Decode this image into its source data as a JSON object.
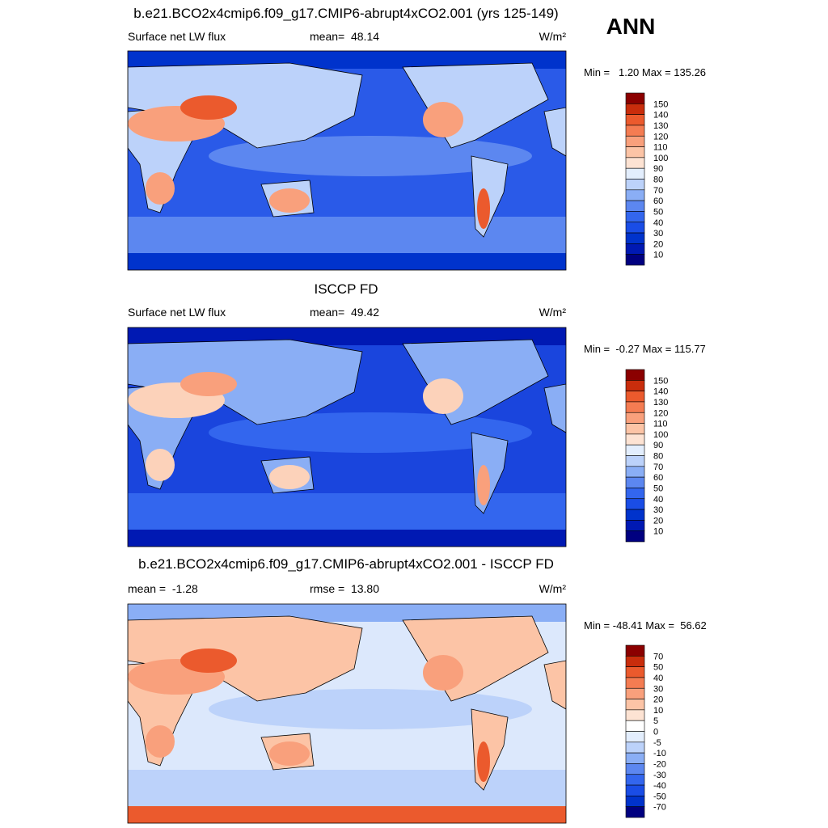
{
  "figure_label": "ANN",
  "panels": [
    {
      "title": "b.e21.BCO2x4cmip6.f09_g17.CMIP6-abrupt4xCO2.001 (yrs 125-149)",
      "left": "Surface net LW flux",
      "center": "mean=  48.14",
      "right": "W/m²",
      "range": "Min =   1.20 Max = 135.26",
      "colorbar": {
        "levels": [
          150,
          140,
          130,
          120,
          110,
          100,
          90,
          80,
          70,
          60,
          50,
          40,
          30,
          20,
          10
        ],
        "colors": [
          "#8b0000",
          "#c92d0c",
          "#eb5a2d",
          "#f47c52",
          "#f9a07c",
          "#fcc4a6",
          "#fde3d3",
          "#e3eefd",
          "#bcd2fa",
          "#8aaef5",
          "#5c87f0",
          "#3366ee",
          "#1a4de6",
          "#0033cc",
          "#0019b3",
          "#000080"
        ]
      }
    },
    {
      "title": "ISCCP FD",
      "left": "Surface net LW flux",
      "center": "mean=  49.42",
      "right": "W/m²",
      "range": "Min =  -0.27 Max = 115.77",
      "colorbar": {
        "levels": [
          150,
          140,
          130,
          120,
          110,
          100,
          90,
          80,
          70,
          60,
          50,
          40,
          30,
          20,
          10
        ],
        "colors": [
          "#8b0000",
          "#c92d0c",
          "#eb5a2d",
          "#f47c52",
          "#f9a07c",
          "#fcc4a6",
          "#fde3d3",
          "#e3eefd",
          "#bcd2fa",
          "#8aaef5",
          "#5c87f0",
          "#3366ee",
          "#1a4de6",
          "#0033cc",
          "#0019b3",
          "#000080"
        ]
      }
    },
    {
      "title": "b.e21.BCO2x4cmip6.f09_g17.CMIP6-abrupt4xCO2.001 - ISCCP FD",
      "left": "mean =  -1.28",
      "center": "rmse =  13.80",
      "right": "W/m²",
      "range": "Min = -48.41 Max =  56.62",
      "colorbar": {
        "levels": [
          70,
          50,
          40,
          30,
          20,
          10,
          5,
          0,
          -5,
          -10,
          -20,
          -30,
          -40,
          -50,
          -70
        ],
        "colors": [
          "#8b0000",
          "#c92d0c",
          "#eb5a2d",
          "#f47c52",
          "#f9a07c",
          "#fcc4a6",
          "#fde3d3",
          "#ffffff",
          "#e3eefd",
          "#bcd2fa",
          "#8aaef5",
          "#5c87f0",
          "#3366ee",
          "#1a4de6",
          "#0033cc",
          "#000080"
        ]
      }
    }
  ]
}
